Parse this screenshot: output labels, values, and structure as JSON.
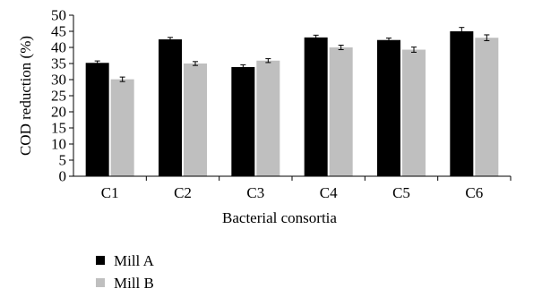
{
  "chart_data": {
    "type": "bar",
    "categories": [
      "C1",
      "C2",
      "C3",
      "C4",
      "C5",
      "C6"
    ],
    "series": [
      {
        "name": "Mill A",
        "values": [
          35.2,
          42.5,
          33.9,
          43.1,
          42.3,
          45.0
        ],
        "errors": [
          0.6,
          0.6,
          0.7,
          0.7,
          0.6,
          1.2
        ],
        "color": "#000000"
      },
      {
        "name": "Mill B",
        "values": [
          30.1,
          35.0,
          35.9,
          40.0,
          39.3,
          43.0
        ],
        "errors": [
          0.7,
          0.6,
          0.6,
          0.7,
          0.8,
          0.9
        ],
        "color": "#bfbfbf"
      }
    ],
    "xlabel": "Bacterial consortia",
    "ylabel": "COD reduction (%)",
    "ylim": [
      0,
      50
    ],
    "yticks": [
      "0",
      "5",
      "10",
      "15",
      "20",
      "25",
      "30",
      "35",
      "40",
      "45",
      "50"
    ],
    "grid": false,
    "legend": "bottom-left"
  }
}
